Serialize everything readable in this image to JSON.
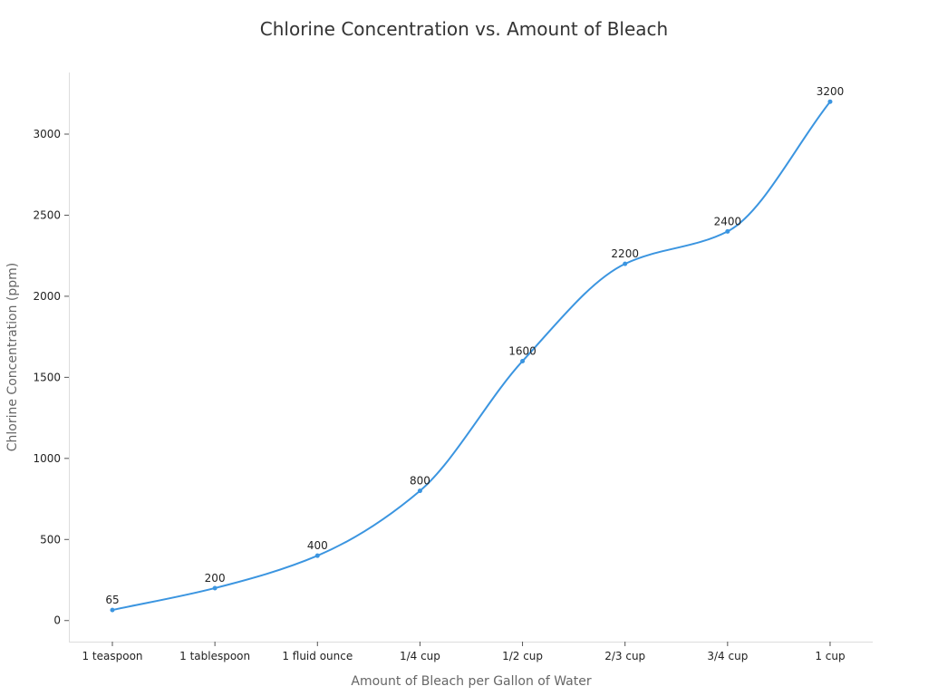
{
  "chart_data": {
    "type": "line",
    "title": "Chlorine Concentration vs. Amount of Bleach",
    "xlabel": "Amount of Bleach per Gallon of Water",
    "ylabel": "Chlorine Concentration (ppm)",
    "categories": [
      "1 teaspoon",
      "1 tablespoon",
      "1 fluid ounce",
      "1/4 cup",
      "1/2 cup",
      "2/3 cup",
      "3/4 cup",
      "1 cup"
    ],
    "series": [
      {
        "values": [
          65,
          200,
          400,
          800,
          1600,
          2200,
          2400,
          3200
        ],
        "color": "#3b95e0"
      }
    ],
    "ylim": [
      -130,
      3380
    ],
    "yticks": [
      0,
      500,
      1000,
      1500,
      2000,
      2500,
      3000
    ],
    "grid": false,
    "legend": "none",
    "data_labels": true,
    "smooth": true
  }
}
